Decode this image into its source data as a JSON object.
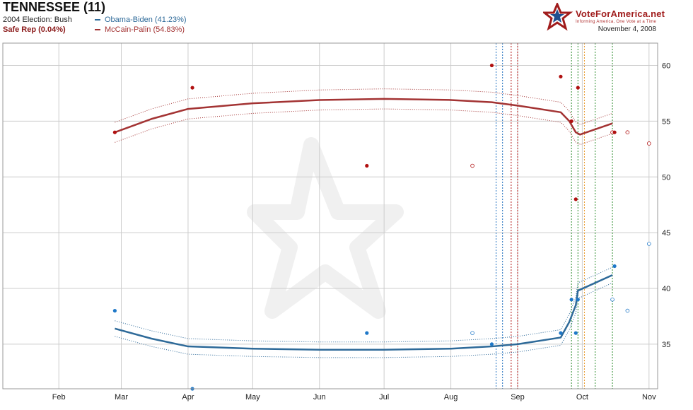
{
  "header": {
    "title": "TENNESSEE (11)",
    "prior_election": "2004 Election: Bush",
    "status": "Safe Rep (0.04%)",
    "date": "November 4, 2008"
  },
  "logo": {
    "name": "VoteForAmerica.net",
    "tagline": "Informing America, One Vote at a Time"
  },
  "colors": {
    "obama": "#2e6a99",
    "mccain": "#a33333",
    "obama_point": "#1f78c8",
    "mccain_point": "#b01010"
  },
  "chart_data": {
    "type": "line",
    "x_type": "date",
    "xlim": [
      "2008-01-06",
      "2008-11-05"
    ],
    "ylim": [
      31,
      62
    ],
    "x_ticks": [
      {
        "date": "2008-02-01",
        "label": "Feb"
      },
      {
        "date": "2008-03-01",
        "label": "Mar"
      },
      {
        "date": "2008-04-01",
        "label": "Apr"
      },
      {
        "date": "2008-05-01",
        "label": "May"
      },
      {
        "date": "2008-06-01",
        "label": "Jun"
      },
      {
        "date": "2008-07-01",
        "label": "Jul"
      },
      {
        "date": "2008-08-01",
        "label": "Aug"
      },
      {
        "date": "2008-09-01",
        "label": "Sep"
      },
      {
        "date": "2008-10-01",
        "label": "Oct"
      },
      {
        "date": "2008-11-01",
        "label": "Nov"
      }
    ],
    "y_ticks": [
      35,
      40,
      45,
      50,
      55,
      60
    ],
    "grid": true,
    "series": [
      {
        "name": "Obama-Biden (41.23%)",
        "party": "obama",
        "trend": [
          [
            "2008-02-27",
            36.4
          ],
          [
            "2008-03-15",
            35.5
          ],
          [
            "2008-04-01",
            34.8
          ],
          [
            "2008-05-01",
            34.6
          ],
          [
            "2008-06-01",
            34.5
          ],
          [
            "2008-07-01",
            34.5
          ],
          [
            "2008-08-01",
            34.6
          ],
          [
            "2008-08-20",
            34.8
          ],
          [
            "2008-09-01",
            35.0
          ],
          [
            "2008-09-21",
            35.6
          ],
          [
            "2008-09-25",
            37.0
          ],
          [
            "2008-09-28",
            38.5
          ],
          [
            "2008-09-29",
            39.8
          ],
          [
            "2008-10-15",
            41.2
          ]
        ],
        "band_width": 0.7,
        "polls": [
          {
            "date": "2008-02-27",
            "value": 38,
            "filled": true
          },
          {
            "date": "2008-04-03",
            "value": 31,
            "filled": true
          },
          {
            "date": "2008-06-23",
            "value": 36,
            "filled": true
          },
          {
            "date": "2008-08-11",
            "value": 36,
            "filled": false
          },
          {
            "date": "2008-08-20",
            "value": 35,
            "filled": true
          },
          {
            "date": "2008-09-21",
            "value": 36,
            "filled": true
          },
          {
            "date": "2008-09-26",
            "value": 39,
            "filled": true
          },
          {
            "date": "2008-09-28",
            "value": 36,
            "filled": true
          },
          {
            "date": "2008-09-29",
            "value": 39,
            "filled": true
          },
          {
            "date": "2008-10-15",
            "value": 39,
            "filled": false
          },
          {
            "date": "2008-10-16",
            "value": 42,
            "filled": true
          },
          {
            "date": "2008-10-22",
            "value": 38,
            "filled": false
          },
          {
            "date": "2008-11-01",
            "value": 44,
            "filled": false
          }
        ]
      },
      {
        "name": "McCain-Palin (54.83%)",
        "party": "mccain",
        "trend": [
          [
            "2008-02-27",
            54.0
          ],
          [
            "2008-03-15",
            55.2
          ],
          [
            "2008-04-01",
            56.1
          ],
          [
            "2008-05-01",
            56.6
          ],
          [
            "2008-06-01",
            56.9
          ],
          [
            "2008-07-01",
            57.0
          ],
          [
            "2008-08-01",
            56.9
          ],
          [
            "2008-08-20",
            56.7
          ],
          [
            "2008-09-01",
            56.4
          ],
          [
            "2008-09-21",
            55.8
          ],
          [
            "2008-09-25",
            55.0
          ],
          [
            "2008-09-28",
            54.0
          ],
          [
            "2008-09-30",
            53.8
          ],
          [
            "2008-10-15",
            54.8
          ]
        ],
        "band_width": 0.9,
        "polls": [
          {
            "date": "2008-02-27",
            "value": 54,
            "filled": true
          },
          {
            "date": "2008-04-03",
            "value": 58,
            "filled": true
          },
          {
            "date": "2008-06-23",
            "value": 51,
            "filled": true
          },
          {
            "date": "2008-08-11",
            "value": 51,
            "filled": false
          },
          {
            "date": "2008-08-20",
            "value": 60,
            "filled": true
          },
          {
            "date": "2008-09-21",
            "value": 59,
            "filled": true
          },
          {
            "date": "2008-09-26",
            "value": 55,
            "filled": true
          },
          {
            "date": "2008-09-28",
            "value": 48,
            "filled": true
          },
          {
            "date": "2008-09-29",
            "value": 58,
            "filled": true
          },
          {
            "date": "2008-10-15",
            "value": 54,
            "filled": false
          },
          {
            "date": "2008-10-16",
            "value": 54,
            "filled": true
          },
          {
            "date": "2008-10-22",
            "value": 54,
            "filled": false
          },
          {
            "date": "2008-11-01",
            "value": 53,
            "filled": false
          }
        ]
      }
    ],
    "event_lines": [
      {
        "date": "2008-08-22",
        "color": "#1f6fbf"
      },
      {
        "date": "2008-08-25",
        "color": "#1f6fbf"
      },
      {
        "date": "2008-08-29",
        "color": "#b01010"
      },
      {
        "date": "2008-09-01",
        "color": "#b01010"
      },
      {
        "date": "2008-09-26",
        "color": "#2a8a2a"
      },
      {
        "date": "2008-09-29",
        "color": "#2a8a2a"
      },
      {
        "date": "2008-10-02",
        "color": "#e89a2a"
      },
      {
        "date": "2008-10-07",
        "color": "#2a8a2a"
      },
      {
        "date": "2008-10-15",
        "color": "#2a8a2a"
      }
    ]
  }
}
